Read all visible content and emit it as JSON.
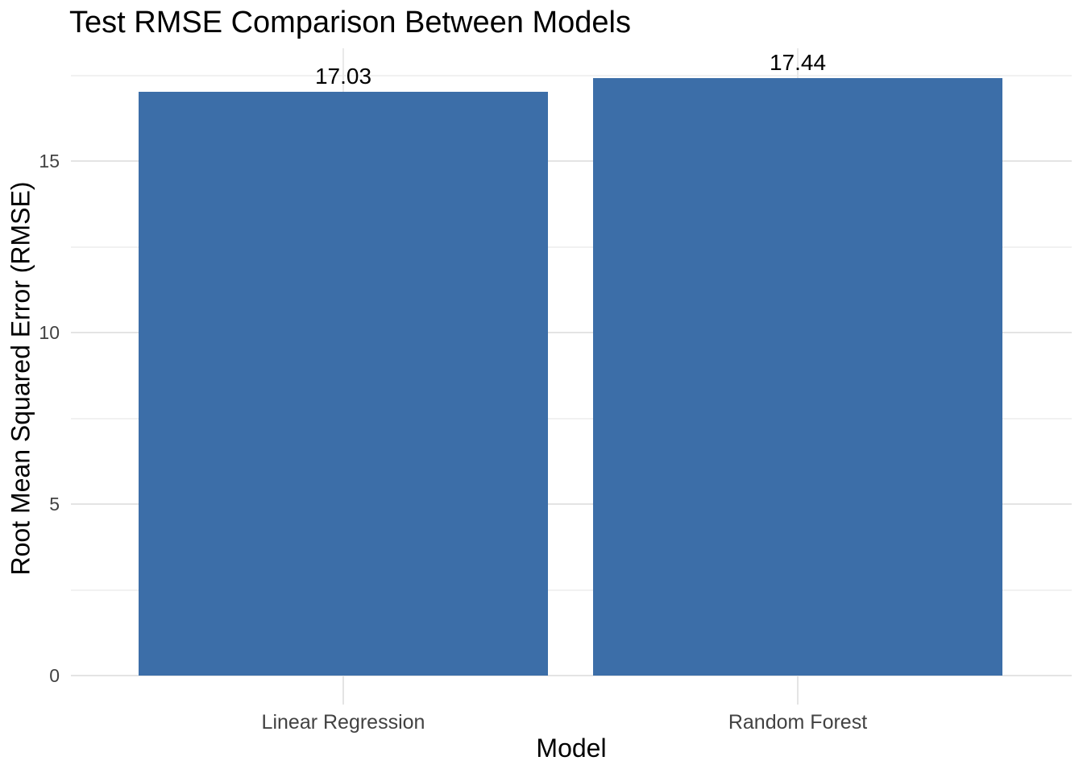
{
  "chart_data": {
    "type": "bar",
    "title": "Test RMSE Comparison Between Models",
    "xlabel": "Model",
    "ylabel": "Root Mean Squared Error (RMSE)",
    "categories": [
      "Linear Regression",
      "Random Forest"
    ],
    "values": [
      17.03,
      17.44
    ],
    "bar_labels": [
      "17.03",
      "17.44"
    ],
    "ylim": [
      0,
      18.3
    ],
    "yticks_major": [
      0,
      5,
      10,
      15
    ],
    "yticks_minor": [
      2.5,
      7.5,
      12.5,
      17.5
    ],
    "grid": "horizontal major and minor gridlines, vertical gridline at each category center",
    "legend_position": "none",
    "orientation": "vertical"
  },
  "colors": {
    "bar_fill": "#3C6EA8",
    "grid_major": "#E4E4E4",
    "grid_minor": "#F1F1F1",
    "vertical_grid": "#E9E9E9",
    "tick_mark": "#E4E4E4",
    "tick_label_text": "#424242",
    "title_text": "#000000",
    "background": "#FFFFFF"
  }
}
